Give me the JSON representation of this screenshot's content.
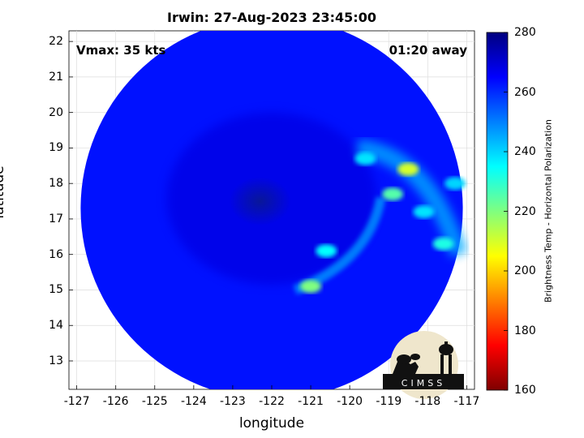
{
  "title": "Irwin: 27-Aug-2023 23:45:00",
  "xlabel": "longitude",
  "ylabel": "latitude",
  "vmax_label": "Vmax: 35 kts",
  "away_label": "01:20 away",
  "colorbar": {
    "label": "Brightness Temp - Horizontal Polarization",
    "ticks": [
      "280",
      "260",
      "240",
      "220",
      "200",
      "180",
      "160"
    ],
    "range": [
      160,
      280
    ]
  },
  "logo": {
    "text": "CIMSS"
  },
  "chart_data": {
    "type": "heatmap",
    "title": "Irwin: 27-Aug-2023 23:45:00",
    "xlabel": "longitude",
    "ylabel": "latitude",
    "xlim": [
      -127.2,
      -116.8
    ],
    "ylim": [
      12.2,
      22.3
    ],
    "x_ticks": [
      "-127",
      "-126",
      "-125",
      "-124",
      "-123",
      "-122",
      "-121",
      "-120",
      "-119",
      "-118",
      "-117"
    ],
    "y_ticks": [
      "22",
      "21",
      "20",
      "19",
      "18",
      "17",
      "16",
      "15",
      "14",
      "13"
    ],
    "grid": true,
    "colormap": "jet",
    "colorbar_range": [
      160,
      280
    ],
    "swath_center": [
      -122.0,
      17.3
    ],
    "swath_radius_deg": 4.9,
    "cold_features": [
      {
        "lon": -118.5,
        "lat": 18.4,
        "value": 210
      },
      {
        "lon": -118.9,
        "lat": 17.7,
        "value": 225
      },
      {
        "lon": -121.0,
        "lat": 15.1,
        "value": 220
      },
      {
        "lon": -120.6,
        "lat": 16.1,
        "value": 235
      },
      {
        "lon": -119.6,
        "lat": 18.7,
        "value": 238
      },
      {
        "lon": -117.6,
        "lat": 16.3,
        "value": 232
      },
      {
        "lon": -118.1,
        "lat": 17.2,
        "value": 238
      },
      {
        "lon": -117.3,
        "lat": 18.0,
        "value": 240
      }
    ]
  }
}
